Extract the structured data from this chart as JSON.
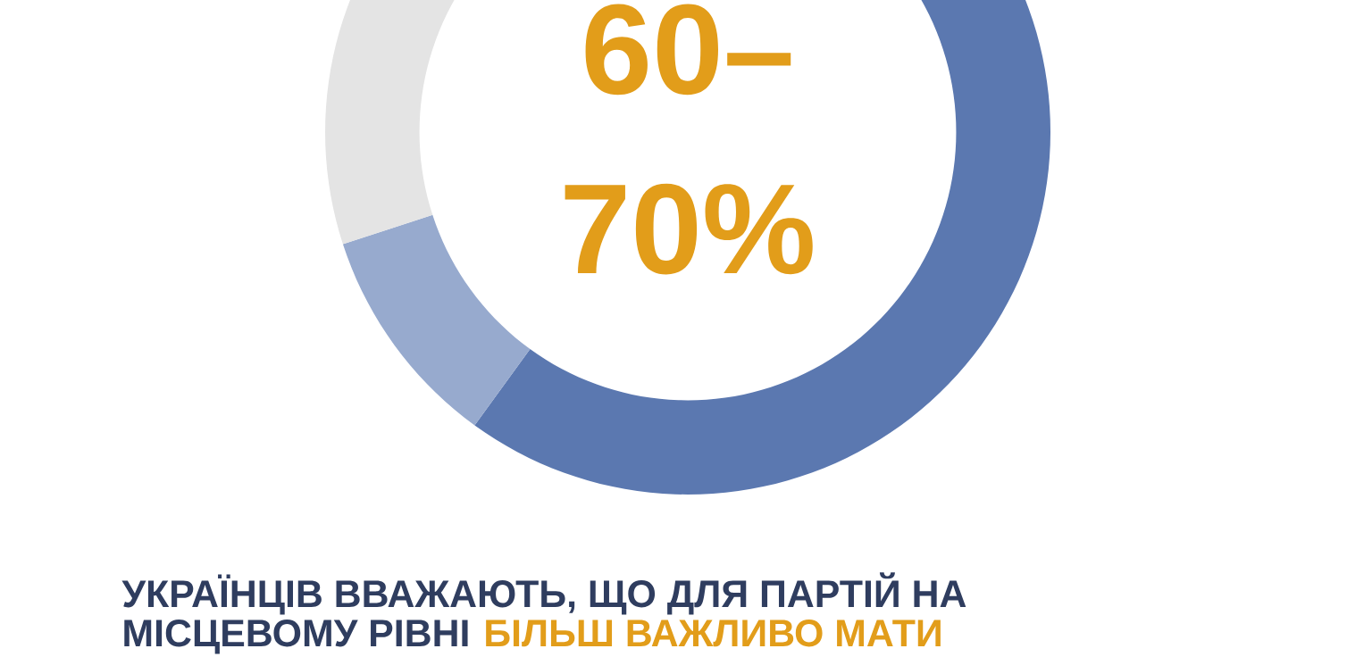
{
  "chart_data": {
    "type": "donut",
    "title": "60–70%",
    "categories": [
      null,
      null,
      null
    ],
    "values": [
      60,
      10,
      30
    ],
    "colors": [
      "#5b78b0",
      "#97aace",
      "#e4e4e4"
    ],
    "annotations": [
      "УКРАЇНЦІВ ВВАЖАЮТЬ, ЩО ДЛЯ ПАРТІЙ НА",
      "МІСЦЕВОМУ РІВНІ",
      "БІЛЬШ ВАЖЛИВО МАТИ"
    ]
  }
}
